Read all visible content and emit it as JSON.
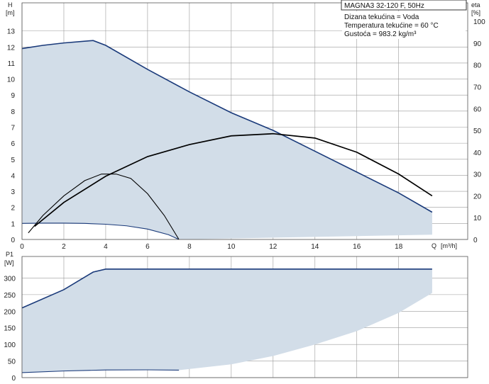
{
  "chart_data": [
    {
      "type": "line",
      "panel": "head-efficiency",
      "title": "MAGNA3 32-120 F, 50Hz",
      "info_lines": [
        "Dizana tekućina = Voda",
        "Temperatura tekućine = 60 °C",
        "Gustoća = 983.2 kg/m³"
      ],
      "y_title": "H",
      "y_unit": "[m]",
      "y2_title": "eta",
      "y2_unit": "[%]",
      "x_title": "Q",
      "x_unit": "[m³/h]",
      "xlim": [
        0,
        21.3
      ],
      "ylim": [
        0,
        14.75
      ],
      "y2lim": [
        0,
        108.5
      ],
      "x_ticks": [
        0,
        2,
        4,
        6,
        8,
        10,
        12,
        14,
        16,
        18
      ],
      "y_ticks": [
        0,
        1,
        2,
        3,
        4,
        5,
        6,
        7,
        8,
        9,
        10,
        11,
        12,
        13
      ],
      "y2_ticks": [
        0,
        10,
        20,
        30,
        40,
        50,
        60,
        70,
        80,
        90,
        100
      ],
      "grid": true,
      "colors": {
        "fill": "#d2dde8",
        "max_curve": "#1a3a7a",
        "curve": "#000000",
        "grid": "#9a9a9a"
      },
      "series": [
        {
          "role": "max-head",
          "axis": "H",
          "x": [
            0,
            1,
            2,
            3.4,
            4,
            6,
            8,
            10,
            12,
            14,
            16,
            18,
            19.6
          ],
          "y": [
            11.9,
            12.1,
            12.25,
            12.4,
            12.1,
            10.6,
            9.2,
            7.9,
            6.8,
            5.5,
            4.2,
            2.9,
            1.7
          ]
        },
        {
          "role": "min-head",
          "axis": "H",
          "x": [
            0,
            1,
            2,
            3,
            4,
            5,
            6,
            7,
            7.5
          ],
          "y": [
            1.0,
            1.02,
            1.02,
            1.0,
            0.95,
            0.85,
            0.65,
            0.3,
            0.0
          ]
        },
        {
          "role": "eta-max",
          "axis": "eta",
          "x": [
            0.6,
            2,
            4,
            6,
            8,
            10,
            12,
            14,
            16,
            18,
            19.6
          ],
          "y": [
            6,
            17,
            29,
            38,
            43.5,
            47.5,
            48.5,
            46.5,
            40,
            30,
            20
          ]
        },
        {
          "role": "eta-min",
          "axis": "eta",
          "x": [
            0.3,
            1,
            2,
            3,
            3.8,
            4.5,
            5.2,
            6,
            6.8,
            7.5
          ],
          "y": [
            3,
            11,
            20,
            27,
            30,
            30,
            28,
            21,
            11,
            0
          ]
        }
      ],
      "filled_region_x_max": 19.6
    },
    {
      "type": "line",
      "panel": "power",
      "y_title": "P1",
      "y_unit": "[W]",
      "xlim": [
        0,
        21.3
      ],
      "ylim": [
        0,
        365
      ],
      "y_ticks": [
        0,
        50,
        100,
        150,
        200,
        250,
        300
      ],
      "grid": true,
      "series": [
        {
          "role": "max-power",
          "x": [
            0,
            2,
            3.4,
            4,
            10,
            19.6
          ],
          "y": [
            210,
            265,
            318,
            327,
            327,
            327
          ]
        },
        {
          "role": "min-power",
          "x": [
            0,
            2,
            4,
            6,
            7.5
          ],
          "y": [
            15,
            20,
            23,
            23.5,
            22.5
          ]
        },
        {
          "role": "range-lower-edge",
          "x": [
            7.5,
            10,
            12,
            14,
            16,
            18,
            19.6
          ],
          "y": [
            22.5,
            40,
            65,
            100,
            140,
            195,
            255
          ]
        }
      ]
    }
  ]
}
